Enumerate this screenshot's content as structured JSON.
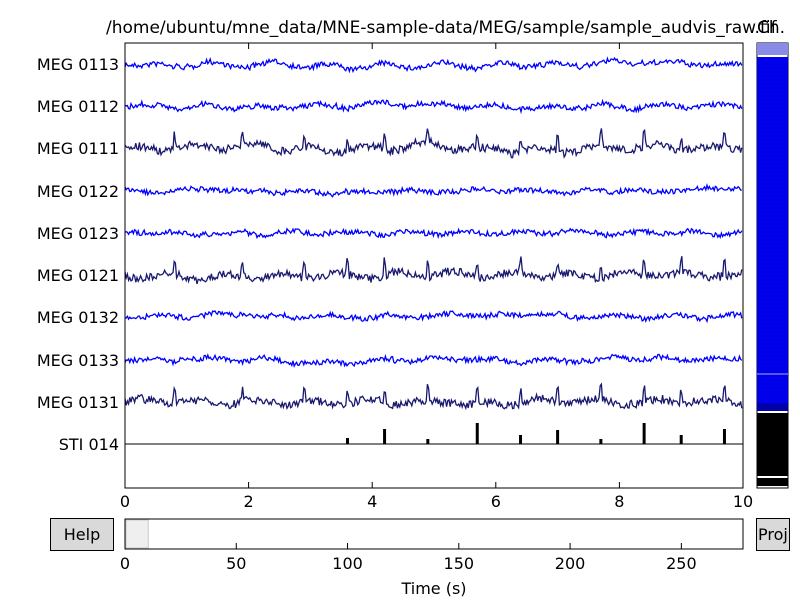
{
  "title": "/home/ubuntu/mne_data/MNE-sample-data/MEG/sample/sample_audvis_raw.fif",
  "channel_panel_title": "Ch.",
  "channels": [
    {
      "name": "MEG 0113",
      "color": "#0000ff"
    },
    {
      "name": "MEG 0112",
      "color": "#0000ff"
    },
    {
      "name": "MEG 0111",
      "color": "#191970"
    },
    {
      "name": "MEG 0122",
      "color": "#0000ff"
    },
    {
      "name": "MEG 0123",
      "color": "#0000ff"
    },
    {
      "name": "MEG 0121",
      "color": "#191970"
    },
    {
      "name": "MEG 0132",
      "color": "#0000ff"
    },
    {
      "name": "MEG 0133",
      "color": "#0000ff"
    },
    {
      "name": "MEG 0131",
      "color": "#191970"
    },
    {
      "name": "STI 014",
      "color": "#000000"
    }
  ],
  "trace_axis": {
    "xlim": [
      0,
      10
    ],
    "ticks": [
      "0",
      "2",
      "4",
      "6",
      "8",
      "10"
    ]
  },
  "stim_events_s": [
    3.6,
    4.2,
    4.9,
    5.7,
    6.4,
    7.0,
    7.7,
    8.4,
    9.0,
    9.7
  ],
  "overview_axis": {
    "xlim": [
      0,
      277.7
    ],
    "ticks": [
      "0",
      "50",
      "100",
      "150",
      "200",
      "250"
    ],
    "xlabel": "Time (s)",
    "window_start_s": 0,
    "window_end_s": 10
  },
  "buttons": {
    "help": "Help",
    "proj": "Proj"
  },
  "colors": {
    "meg_grad": "#0000ff",
    "meg_mag": "#191970",
    "stim": "#000000"
  }
}
